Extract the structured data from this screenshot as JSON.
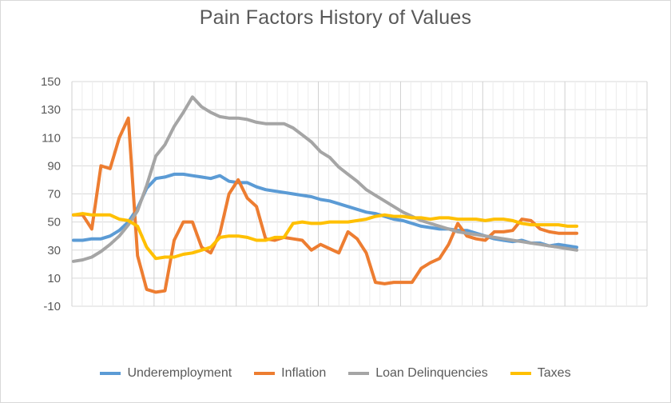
{
  "chart_data": {
    "type": "line",
    "title": "Pain Factors History of Values",
    "xlabel": "",
    "ylabel": "",
    "ylim": [
      -10,
      150
    ],
    "yticks": [
      -10,
      10,
      30,
      50,
      70,
      90,
      110,
      130,
      150
    ],
    "x_count": 56,
    "x_points": 56,
    "grid": {
      "horizontal": true,
      "vertical": true,
      "vertical_every": 8
    },
    "legend": "bottom",
    "series": [
      {
        "name": "Underemployment",
        "color": "#5b9bd5",
        "values": [
          37,
          37,
          38,
          38,
          40,
          44,
          50,
          60,
          74,
          81,
          82,
          84,
          84,
          83,
          82,
          81,
          83,
          79,
          78,
          78,
          75,
          73,
          72,
          71,
          70,
          69,
          68,
          66,
          65,
          63,
          61,
          59,
          57,
          56,
          54,
          52,
          51,
          49,
          47,
          46,
          45,
          45,
          44,
          44,
          42,
          40,
          38,
          37,
          36,
          37,
          35,
          35,
          33,
          34,
          33,
          32
        ]
      },
      {
        "name": "Inflation",
        "color": "#ed7d31",
        "values": [
          55,
          55,
          45,
          90,
          88,
          110,
          124,
          26,
          2,
          0,
          1,
          37,
          50,
          50,
          32,
          28,
          42,
          70,
          80,
          67,
          61,
          38,
          37,
          39,
          38,
          37,
          30,
          34,
          31,
          28,
          43,
          38,
          28,
          7,
          6,
          7,
          7,
          7,
          17,
          21,
          24,
          34,
          49,
          40,
          38,
          37,
          43,
          43,
          44,
          52,
          51,
          45,
          43,
          42,
          42,
          42
        ]
      },
      {
        "name": "Loan Delinquencies",
        "color": "#a5a5a5",
        "values": [
          22,
          23,
          25,
          29,
          34,
          40,
          48,
          58,
          76,
          97,
          105,
          118,
          128,
          139,
          132,
          128,
          125,
          124,
          124,
          123,
          121,
          120,
          120,
          120,
          117,
          112,
          107,
          100,
          96,
          89,
          84,
          79,
          73,
          69,
          65,
          61,
          57,
          54,
          51,
          49,
          47,
          45,
          43,
          42,
          41,
          40,
          39,
          38,
          37,
          36,
          35,
          34,
          33,
          32,
          31,
          30
        ]
      },
      {
        "name": "Taxes",
        "color": "#ffc000",
        "values": [
          55,
          56,
          55,
          55,
          55,
          52,
          51,
          47,
          32,
          24,
          25,
          25,
          27,
          28,
          30,
          32,
          39,
          40,
          40,
          39,
          37,
          37,
          39,
          39,
          49,
          50,
          49,
          49,
          50,
          50,
          50,
          51,
          52,
          54,
          55,
          54,
          54,
          53,
          53,
          52,
          53,
          53,
          52,
          52,
          52,
          51,
          52,
          52,
          51,
          49,
          48,
          48,
          48,
          48,
          47,
          47
        ]
      }
    ]
  }
}
